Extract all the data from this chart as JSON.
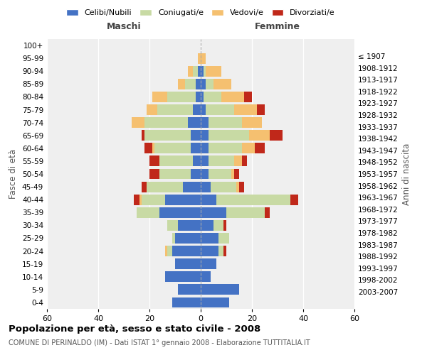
{
  "age_groups": [
    "0-4",
    "5-9",
    "10-14",
    "15-19",
    "20-24",
    "25-29",
    "30-34",
    "35-39",
    "40-44",
    "45-49",
    "50-54",
    "55-59",
    "60-64",
    "65-69",
    "70-74",
    "75-79",
    "80-84",
    "85-89",
    "90-94",
    "95-99",
    "100+"
  ],
  "birth_years": [
    "2003-2007",
    "1998-2002",
    "1993-1997",
    "1988-1992",
    "1983-1987",
    "1978-1982",
    "1973-1977",
    "1968-1972",
    "1963-1967",
    "1958-1962",
    "1953-1957",
    "1948-1952",
    "1943-1947",
    "1938-1942",
    "1933-1937",
    "1928-1932",
    "1923-1927",
    "1918-1922",
    "1913-1917",
    "1908-1912",
    "≤ 1907"
  ],
  "maschi": {
    "celibi": [
      11,
      9,
      14,
      10,
      11,
      10,
      9,
      16,
      14,
      7,
      4,
      3,
      4,
      4,
      5,
      3,
      2,
      2,
      1,
      0,
      0
    ],
    "coniugati": [
      0,
      0,
      0,
      0,
      2,
      1,
      4,
      9,
      9,
      14,
      12,
      13,
      14,
      18,
      17,
      14,
      11,
      4,
      2,
      0,
      0
    ],
    "vedovi": [
      0,
      0,
      0,
      0,
      1,
      0,
      0,
      0,
      1,
      0,
      0,
      0,
      1,
      0,
      5,
      4,
      6,
      3,
      2,
      1,
      0
    ],
    "divorziati": [
      0,
      0,
      0,
      0,
      0,
      0,
      0,
      0,
      2,
      2,
      4,
      4,
      3,
      1,
      0,
      0,
      0,
      0,
      0,
      0,
      0
    ]
  },
  "femmine": {
    "nubili": [
      11,
      15,
      4,
      6,
      7,
      7,
      5,
      10,
      6,
      4,
      3,
      3,
      3,
      3,
      3,
      2,
      1,
      2,
      1,
      0,
      0
    ],
    "coniugate": [
      0,
      0,
      0,
      0,
      2,
      4,
      4,
      15,
      29,
      10,
      9,
      10,
      13,
      16,
      13,
      11,
      7,
      3,
      1,
      0,
      0
    ],
    "vedove": [
      0,
      0,
      0,
      0,
      0,
      0,
      0,
      0,
      0,
      1,
      1,
      3,
      5,
      8,
      8,
      9,
      9,
      7,
      6,
      2,
      0
    ],
    "divorziate": [
      0,
      0,
      0,
      0,
      1,
      0,
      1,
      2,
      3,
      2,
      2,
      2,
      4,
      5,
      0,
      3,
      3,
      0,
      0,
      0,
      0
    ]
  },
  "colors": {
    "celibi": "#4472C4",
    "coniugati": "#c8daa4",
    "vedovi": "#f5c070",
    "divorziati": "#c0281a"
  },
  "xlim": 60,
  "title": "Popolazione per età, sesso e stato civile - 2008",
  "subtitle": "COMUNE DI PERINALDO (IM) - Dati ISTAT 1° gennaio 2008 - Elaborazione TUTTITALIA.IT",
  "ylabel": "Fasce di età",
  "ylabel_right": "Anni di nascita",
  "legend_labels": [
    "Celibi/Nubili",
    "Coniugati/e",
    "Vedovi/e",
    "Divorziati/e"
  ],
  "background_color": "#efefef",
  "bar_height": 0.82,
  "xticks": [
    -60,
    -40,
    -20,
    0,
    20,
    40,
    60
  ]
}
